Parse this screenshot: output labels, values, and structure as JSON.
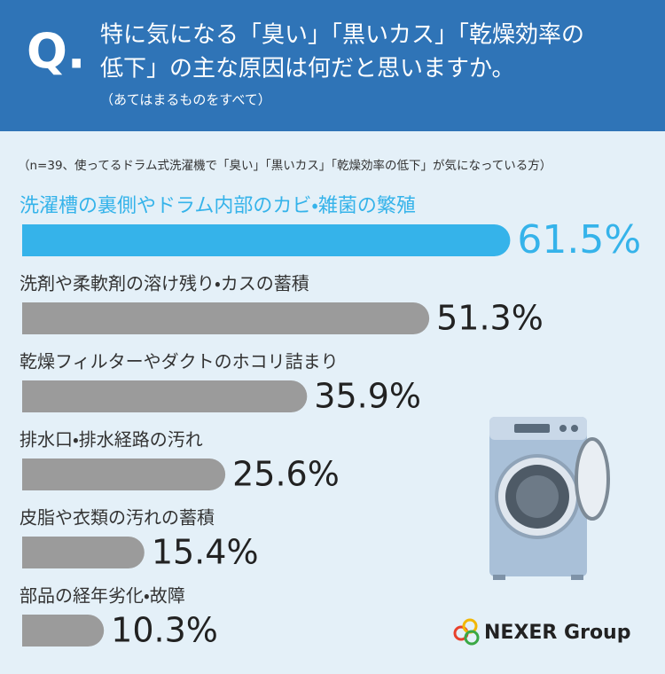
{
  "header": {
    "q": "Q.",
    "question_lines": [
      "特に気になる「臭い」「黒いカス」「乾燥効率の",
      "低下」の主な原因は何だと思いますか。"
    ],
    "subtitle": "（あてはまるものをすべて）"
  },
  "chart_data": {
    "type": "bar",
    "orientation": "horizontal",
    "note": "（n=39、使ってるドラム式洗濯機で「臭い」「黒いカス」「乾燥効率の低下」が気になっている方）",
    "categories": [
      "洗濯槽の裏側やドラム内部のカビ・雑菌の繁殖",
      "洗剤や柔軟剤の溶け残り・カスの蓄積",
      "乾燥フィルターやダクトのホコリ詰まり",
      "排水口・排水経路の汚れ",
      "皮脂や衣類の汚れの蓄積",
      "部品の経年劣化・故障"
    ],
    "values": [
      61.5,
      51.3,
      35.9,
      25.6,
      15.4,
      10.3
    ],
    "value_labels": [
      "61.5%",
      "51.3%",
      "35.9%",
      "25.6%",
      "15.4%",
      "10.3%"
    ],
    "colors": [
      "#35b3ea",
      "#9b9b9b",
      "#9b9b9b",
      "#9b9b9b",
      "#9b9b9b",
      "#9b9b9b"
    ],
    "highlight_index": 0
  },
  "logo": {
    "text": "NEXER Group"
  }
}
